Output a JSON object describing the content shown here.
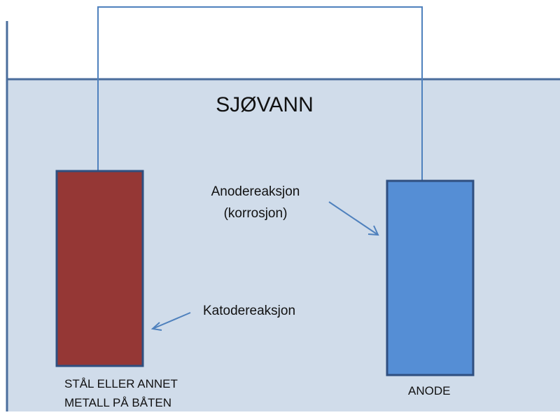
{
  "title": "SJØVANN",
  "labels": {
    "anode_reaction": [
      "Anodereaksjon",
      "(korrosjon)"
    ],
    "cathode_reaction": "Katodereaksjon"
  },
  "nodes": [
    {
      "label": [
        "STÅL ELLER  ANNET",
        "METALL PÅ BÅTEN"
      ]
    },
    {
      "label": "ANODE"
    }
  ]
}
